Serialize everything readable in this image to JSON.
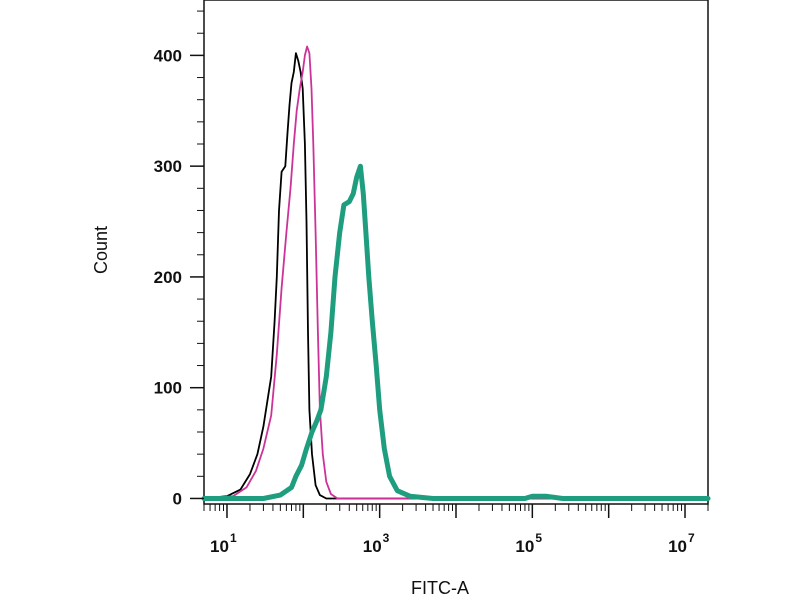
{
  "chart_data": {
    "type": "line",
    "title": "",
    "xlabel": "FITC-A",
    "ylabel": "Count",
    "x_scale": "log",
    "xlim": [
      5,
      20000000
    ],
    "ylim": [
      -5,
      450
    ],
    "x_ticks": [
      {
        "value": 10,
        "base": "10",
        "exp": "1"
      },
      {
        "value": 1000,
        "base": "10",
        "exp": "3"
      },
      {
        "value": 100000,
        "base": "10",
        "exp": "5"
      },
      {
        "value": 10000000,
        "base": "10",
        "exp": "7"
      }
    ],
    "y_ticks": [
      {
        "value": 0,
        "label": "0"
      },
      {
        "value": 100,
        "label": "100"
      },
      {
        "value": 200,
        "label": "200"
      },
      {
        "value": 300,
        "label": "300"
      },
      {
        "value": 400,
        "label": "400"
      }
    ],
    "grid": false,
    "legend": "none",
    "series": [
      {
        "color": "#000000",
        "width": 1.8,
        "points": [
          [
            5,
            0
          ],
          [
            10,
            2
          ],
          [
            15,
            8
          ],
          [
            20,
            22
          ],
          [
            25,
            40
          ],
          [
            30,
            65
          ],
          [
            38,
            110
          ],
          [
            42,
            160
          ],
          [
            45,
            200
          ],
          [
            48,
            260
          ],
          [
            52,
            295
          ],
          [
            58,
            300
          ],
          [
            62,
            330
          ],
          [
            66,
            355
          ],
          [
            70,
            375
          ],
          [
            75,
            385
          ],
          [
            80,
            402
          ],
          [
            86,
            395
          ],
          [
            92,
            385
          ],
          [
            98,
            370
          ],
          [
            105,
            320
          ],
          [
            110,
            250
          ],
          [
            115,
            150
          ],
          [
            120,
            80
          ],
          [
            130,
            40
          ],
          [
            145,
            12
          ],
          [
            165,
            3
          ],
          [
            200,
            0
          ],
          [
            20000000,
            0
          ]
        ]
      },
      {
        "color": "#cc3399",
        "width": 1.8,
        "points": [
          [
            5,
            0
          ],
          [
            12,
            2
          ],
          [
            18,
            10
          ],
          [
            24,
            25
          ],
          [
            30,
            45
          ],
          [
            38,
            75
          ],
          [
            45,
            130
          ],
          [
            52,
            190
          ],
          [
            60,
            240
          ],
          [
            68,
            280
          ],
          [
            75,
            320
          ],
          [
            82,
            350
          ],
          [
            90,
            370
          ],
          [
            98,
            385
          ],
          [
            105,
            400
          ],
          [
            112,
            408
          ],
          [
            120,
            402
          ],
          [
            128,
            370
          ],
          [
            135,
            320
          ],
          [
            145,
            240
          ],
          [
            155,
            150
          ],
          [
            165,
            80
          ],
          [
            180,
            40
          ],
          [
            200,
            15
          ],
          [
            230,
            4
          ],
          [
            280,
            0
          ],
          [
            20000000,
            0
          ]
        ]
      },
      {
        "color": "#1f9e7f",
        "width": 5,
        "points": [
          [
            5,
            0
          ],
          [
            30,
            0
          ],
          [
            50,
            3
          ],
          [
            70,
            10
          ],
          [
            80,
            20
          ],
          [
            95,
            30
          ],
          [
            110,
            45
          ],
          [
            130,
            60
          ],
          [
            150,
            70
          ],
          [
            170,
            80
          ],
          [
            200,
            110
          ],
          [
            230,
            150
          ],
          [
            260,
            200
          ],
          [
            300,
            240
          ],
          [
            340,
            265
          ],
          [
            400,
            268
          ],
          [
            450,
            275
          ],
          [
            500,
            290
          ],
          [
            560,
            300
          ],
          [
            610,
            275
          ],
          [
            660,
            240
          ],
          [
            720,
            200
          ],
          [
            800,
            160
          ],
          [
            900,
            120
          ],
          [
            1000,
            80
          ],
          [
            1150,
            45
          ],
          [
            1350,
            20
          ],
          [
            1700,
            7
          ],
          [
            2500,
            2
          ],
          [
            5000,
            0
          ],
          [
            80000,
            0
          ],
          [
            100000,
            2
          ],
          [
            150000,
            2
          ],
          [
            250000,
            0
          ],
          [
            20000000,
            0
          ]
        ]
      }
    ]
  }
}
